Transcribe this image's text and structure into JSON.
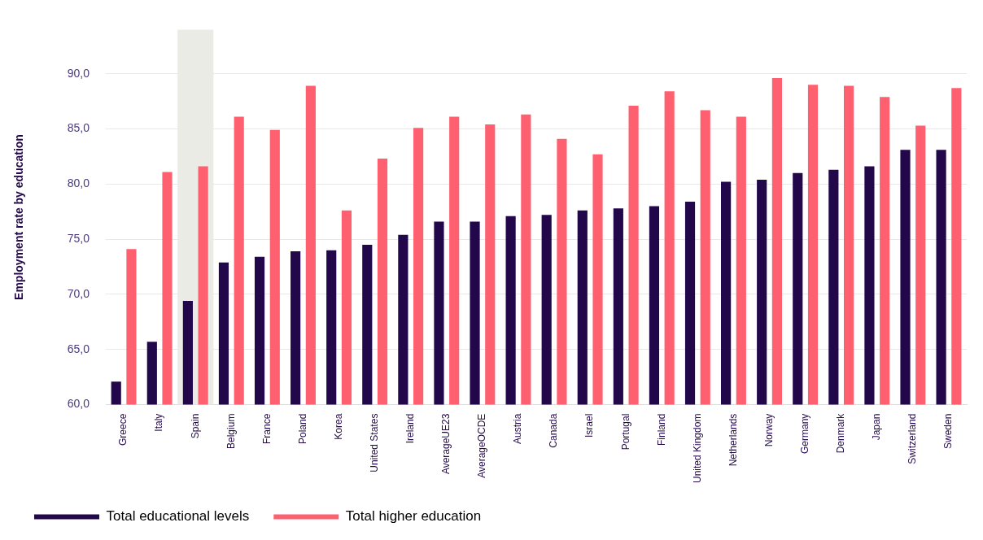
{
  "chart_data": {
    "type": "bar",
    "ylabel": "Employment rate by education",
    "categories": [
      "Greece",
      "Italy",
      "Spain",
      "Belgium",
      "France",
      "Poland",
      "Korea",
      "United States",
      "Ireland",
      "AverageUE23",
      "AverageOCDE",
      "Austria",
      "Canada",
      "Israel",
      "Portugal",
      "Finland",
      "United Kingdom",
      "Netherlands",
      "Norway",
      "Germany",
      "Denmark",
      "Japan",
      "Switzerland",
      "Sweden"
    ],
    "series": [
      {
        "name": "Total educational levels",
        "color": "#22084a",
        "values": [
          62.1,
          65.7,
          69.4,
          72.9,
          73.4,
          73.9,
          74.0,
          74.5,
          75.4,
          76.6,
          76.6,
          77.1,
          77.2,
          77.6,
          77.8,
          78.0,
          78.4,
          80.2,
          80.4,
          81.0,
          81.3,
          81.6,
          83.1,
          83.1
        ]
      },
      {
        "name": "Total higher education",
        "color": "#ff6070",
        "values": [
          74.1,
          81.1,
          81.6,
          86.1,
          84.9,
          88.9,
          77.6,
          82.3,
          85.1,
          86.1,
          85.4,
          86.3,
          84.1,
          82.7,
          87.1,
          88.4,
          86.7,
          86.1,
          89.6,
          89.0,
          88.9,
          87.9,
          85.3,
          88.7
        ]
      }
    ],
    "ylim": [
      60,
      94
    ],
    "yticks": [
      {
        "value": 60,
        "label": "60,0"
      },
      {
        "value": 65,
        "label": "65,0"
      },
      {
        "value": 70,
        "label": "70,0"
      },
      {
        "value": 75,
        "label": "75,0"
      },
      {
        "value": 80,
        "label": "80,0"
      },
      {
        "value": 85,
        "label": "85,0"
      },
      {
        "value": 90,
        "label": "90,0"
      }
    ],
    "bands": [
      {
        "axis": "x",
        "from": "Spain",
        "to": "Spain",
        "color": "#ebebe6"
      }
    ],
    "grid": "y",
    "legend": "bottom"
  }
}
